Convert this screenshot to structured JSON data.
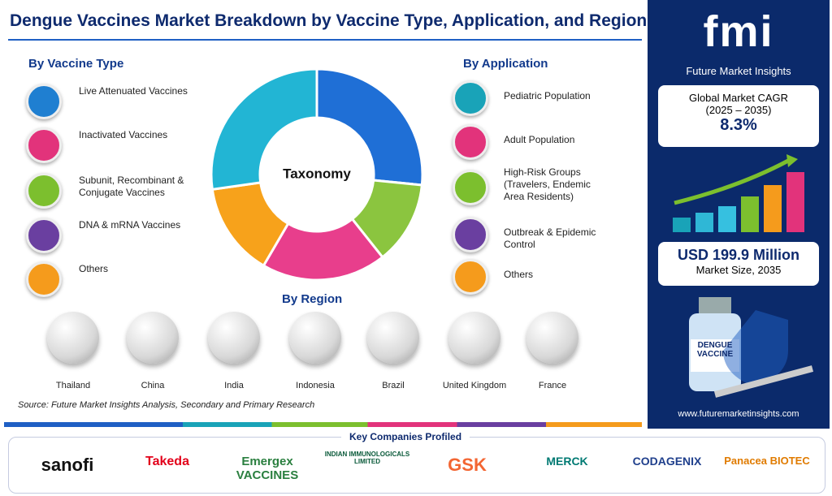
{
  "header": {
    "title": "Dengue Vaccines Market Breakdown by Vaccine Type, Application, and Region"
  },
  "vaccine_type": {
    "heading": "By Vaccine Type",
    "items": [
      "Live Attenuated Vaccines",
      "Inactivated Vaccines",
      "Subunit, Recombinant & Conjugate Vaccines",
      "DNA & mRNA Vaccines",
      "Others"
    ]
  },
  "center": {
    "label": "Taxonomy"
  },
  "application": {
    "heading": "By Application",
    "items": [
      "Pediatric Population",
      "Adult Population",
      "High-Risk Groups (Travelers, Endemic Area Residents)",
      "Outbreak & Epidemic Control",
      "Others"
    ]
  },
  "region": {
    "heading": "By Region",
    "items": [
      "Thailand",
      "China",
      "India",
      "Indonesia",
      "Brazil",
      "United Kingdom",
      "France"
    ]
  },
  "source": "Source: Future Market Insights Analysis, Secondary and Primary Research",
  "panel": {
    "logo": "fmi",
    "brand": "Future Market Insights",
    "cagr_label": "Global Market CAGR",
    "cagr_period": "(2025 – 2035)",
    "cagr_value": "8.3%",
    "size_value": "USD 199.9 Million",
    "size_label": "Market Size, 2035",
    "vial_label": "DENGUE VACCINE",
    "url": "www.futuremarketinsights.com"
  },
  "companies": {
    "heading": "Key Companies Profiled",
    "items": [
      "sanofi",
      "Takeda",
      "Emergex VACCINES",
      "INDIAN IMMUNOLOGICALS LIMITED",
      "GSK",
      "MERCK",
      "CODAGENIX",
      "Panacea BIOTEC"
    ]
  }
}
